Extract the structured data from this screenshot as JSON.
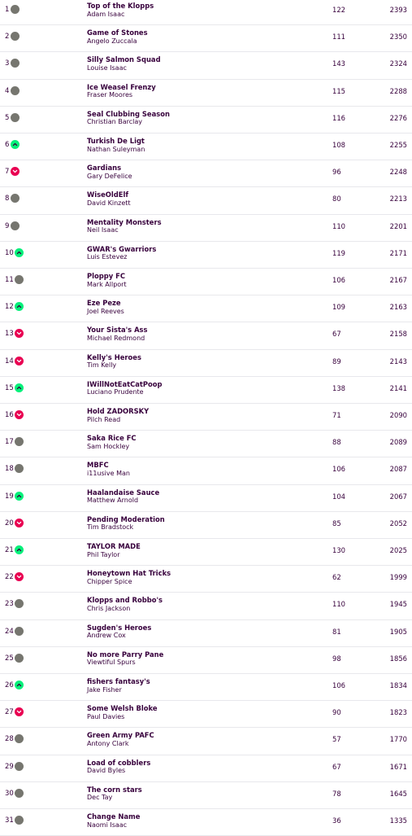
{
  "colors": {
    "same": "#76766f",
    "up": "#05f07a",
    "down": "#e90052",
    "text": "#37003c"
  },
  "rows": [
    {
      "rank": "1",
      "movement": "same",
      "team": "Top of the Klopps",
      "manager": "Adam Isaac",
      "gw": "122",
      "total": "2393"
    },
    {
      "rank": "2",
      "movement": "same",
      "team": "Game of Stones",
      "manager": "Angelo Zuccala",
      "gw": "111",
      "total": "2350"
    },
    {
      "rank": "3",
      "movement": "same",
      "team": "Silly Salmon Squad",
      "manager": "Louise Isaac",
      "gw": "143",
      "total": "2324"
    },
    {
      "rank": "4",
      "movement": "same",
      "team": "Ice Weasel Frenzy",
      "manager": "Fraser Moores",
      "gw": "115",
      "total": "2288"
    },
    {
      "rank": "5",
      "movement": "same",
      "team": "Seal Clubbing Season",
      "manager": "Christian Barclay",
      "gw": "116",
      "total": "2276"
    },
    {
      "rank": "6",
      "movement": "up",
      "team": "Turkish De Ligt",
      "manager": "Nathan Suleyman",
      "gw": "108",
      "total": "2255"
    },
    {
      "rank": "7",
      "movement": "down",
      "team": "Gardians",
      "manager": "Gary DeFelice",
      "gw": "96",
      "total": "2248"
    },
    {
      "rank": "8",
      "movement": "same",
      "team": "WiseOldElf",
      "manager": "David Kinzett",
      "gw": "80",
      "total": "2213"
    },
    {
      "rank": "9",
      "movement": "same",
      "team": "Mentality Monsters",
      "manager": "Neil Isaac",
      "gw": "110",
      "total": "2201"
    },
    {
      "rank": "10",
      "movement": "up",
      "team": "GWAR's Gwarriors",
      "manager": "Luis Estevez",
      "gw": "119",
      "total": "2171"
    },
    {
      "rank": "11",
      "movement": "same",
      "team": "Ploppy FC",
      "manager": "Mark Allport",
      "gw": "106",
      "total": "2167"
    },
    {
      "rank": "12",
      "movement": "up",
      "team": "Eze Peze",
      "manager": "Joel Reeves",
      "gw": "109",
      "total": "2163"
    },
    {
      "rank": "13",
      "movement": "down",
      "team": "Your Sista's Ass",
      "manager": "Michael Redmond",
      "gw": "67",
      "total": "2158"
    },
    {
      "rank": "14",
      "movement": "down",
      "team": "Kelly's Heroes",
      "manager": "Tim Kelly",
      "gw": "89",
      "total": "2143"
    },
    {
      "rank": "15",
      "movement": "up",
      "team": "IWillNotEatCatPoop",
      "manager": "Luciano Prudente",
      "gw": "138",
      "total": "2141"
    },
    {
      "rank": "16",
      "movement": "down",
      "team": "Hold ZADORSKY",
      "manager": "Pilch Read",
      "gw": "71",
      "total": "2090"
    },
    {
      "rank": "17",
      "movement": "same",
      "team": "Saka Rice FC",
      "manager": "Sam Hockley",
      "gw": "88",
      "total": "2089"
    },
    {
      "rank": "18",
      "movement": "same",
      "team": "MBFC",
      "manager": "i11usive Man",
      "gw": "106",
      "total": "2087"
    },
    {
      "rank": "19",
      "movement": "up",
      "team": "Haalandaise Sauce",
      "manager": "Matthew Arnold",
      "gw": "104",
      "total": "2067"
    },
    {
      "rank": "20",
      "movement": "down",
      "team": "Pending Moderation",
      "manager": "Tim Bradstock",
      "gw": "85",
      "total": "2052"
    },
    {
      "rank": "21",
      "movement": "up",
      "team": "TAYLOR MADE",
      "manager": "Phil Taylor",
      "gw": "130",
      "total": "2025"
    },
    {
      "rank": "22",
      "movement": "down",
      "team": "Honeytown Hat Tricks",
      "manager": "Chipper Spice",
      "gw": "62",
      "total": "1999"
    },
    {
      "rank": "23",
      "movement": "same",
      "team": "Klopps and Robbo's",
      "manager": "Chris Jackson",
      "gw": "110",
      "total": "1945"
    },
    {
      "rank": "24",
      "movement": "same",
      "team": "Sugden's Heroes",
      "manager": "Andrew Cox",
      "gw": "81",
      "total": "1905"
    },
    {
      "rank": "25",
      "movement": "same",
      "team": "No more Parry Pane",
      "manager": "Viewtiful Spurs",
      "gw": "98",
      "total": "1856"
    },
    {
      "rank": "26",
      "movement": "up",
      "team": "fishers fantasy's",
      "manager": "Jake Fisher",
      "gw": "106",
      "total": "1834"
    },
    {
      "rank": "27",
      "movement": "down",
      "team": "Some Welsh Bloke",
      "manager": "Paul Davies",
      "gw": "90",
      "total": "1823"
    },
    {
      "rank": "28",
      "movement": "same",
      "team": "Green Army PAFC",
      "manager": "Antony Clark",
      "gw": "57",
      "total": "1770"
    },
    {
      "rank": "29",
      "movement": "same",
      "team": "Load of cobblers",
      "manager": "David Byles",
      "gw": "67",
      "total": "1671"
    },
    {
      "rank": "30",
      "movement": "same",
      "team": "The corn stars",
      "manager": "Dec Tay",
      "gw": "78",
      "total": "1645"
    },
    {
      "rank": "31",
      "movement": "same",
      "team": "Change Name",
      "manager": "Naomi Isaac",
      "gw": "36",
      "total": "1335"
    }
  ]
}
